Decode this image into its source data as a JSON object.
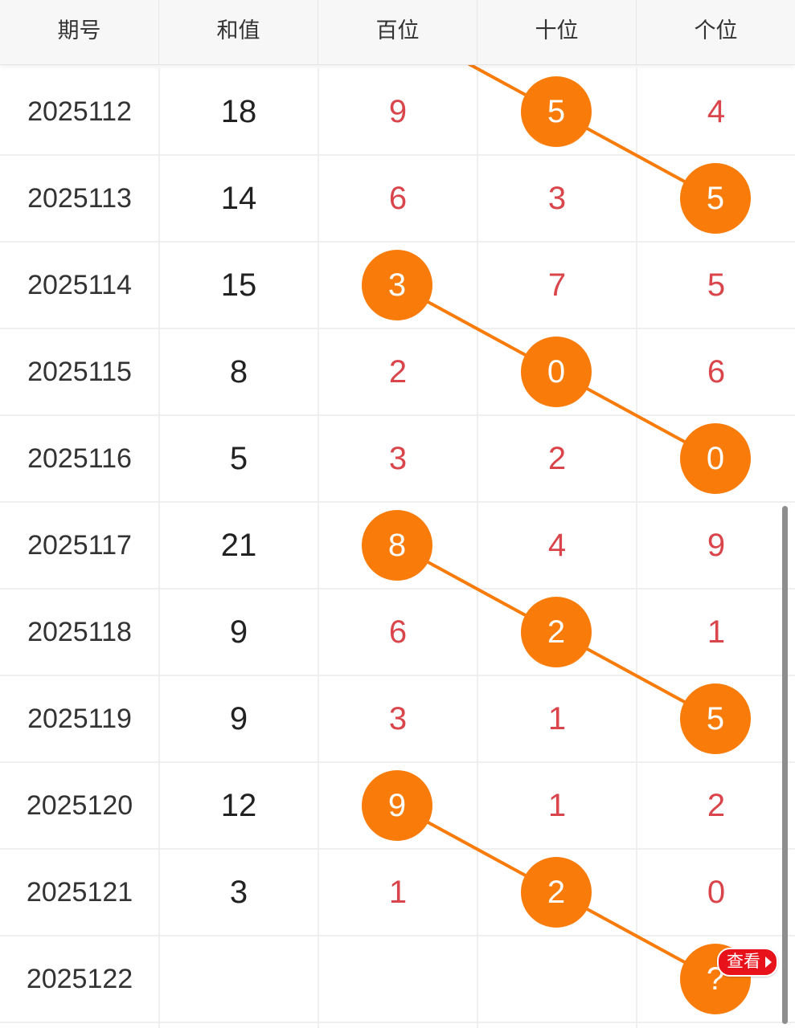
{
  "header": {
    "col_issue": "期号",
    "col_sum": "和值",
    "col_hundreds": "百位",
    "col_tens": "十位",
    "col_units": "个位"
  },
  "rows": [
    {
      "issue": "2025112",
      "sum": "18",
      "hundreds": "9",
      "tens": "5",
      "units": "4"
    },
    {
      "issue": "2025113",
      "sum": "14",
      "hundreds": "6",
      "tens": "3",
      "units": "5"
    },
    {
      "issue": "2025114",
      "sum": "15",
      "hundreds": "3",
      "tens": "7",
      "units": "5"
    },
    {
      "issue": "2025115",
      "sum": "8",
      "hundreds": "2",
      "tens": "0",
      "units": "6"
    },
    {
      "issue": "2025116",
      "sum": "5",
      "hundreds": "3",
      "tens": "2",
      "units": "0"
    },
    {
      "issue": "2025117",
      "sum": "21",
      "hundreds": "8",
      "tens": "4",
      "units": "9"
    },
    {
      "issue": "2025118",
      "sum": "9",
      "hundreds": "6",
      "tens": "2",
      "units": "1"
    },
    {
      "issue": "2025119",
      "sum": "9",
      "hundreds": "3",
      "tens": "1",
      "units": "5"
    },
    {
      "issue": "2025120",
      "sum": "12",
      "hundreds": "9",
      "tens": "1",
      "units": "2"
    },
    {
      "issue": "2025121",
      "sum": "3",
      "hundreds": "1",
      "tens": "2",
      "units": "0"
    },
    {
      "issue": "2025122",
      "sum": "",
      "hundreds": "",
      "tens": "",
      "units": ""
    }
  ],
  "unknown_mark": "?",
  "view_button_label": "查看",
  "colors": {
    "ball": "#f97b0a",
    "digit": "#d9454a",
    "badge": "#e8121a",
    "header_bg": "#f7f7f7"
  },
  "highlight_segments": [
    [
      {
        "row": 0,
        "col": "tens"
      },
      {
        "row": 1,
        "col": "units"
      }
    ],
    [
      {
        "row": 2,
        "col": "hundreds"
      },
      {
        "row": 3,
        "col": "tens"
      },
      {
        "row": 4,
        "col": "units"
      }
    ],
    [
      {
        "row": 5,
        "col": "hundreds"
      },
      {
        "row": 6,
        "col": "tens"
      },
      {
        "row": 7,
        "col": "units"
      }
    ],
    [
      {
        "row": 8,
        "col": "hundreds"
      },
      {
        "row": 9,
        "col": "tens"
      },
      {
        "row": 10,
        "col": "units"
      }
    ]
  ],
  "trend_in_from_above": {
    "row": 0,
    "col": "tens"
  }
}
